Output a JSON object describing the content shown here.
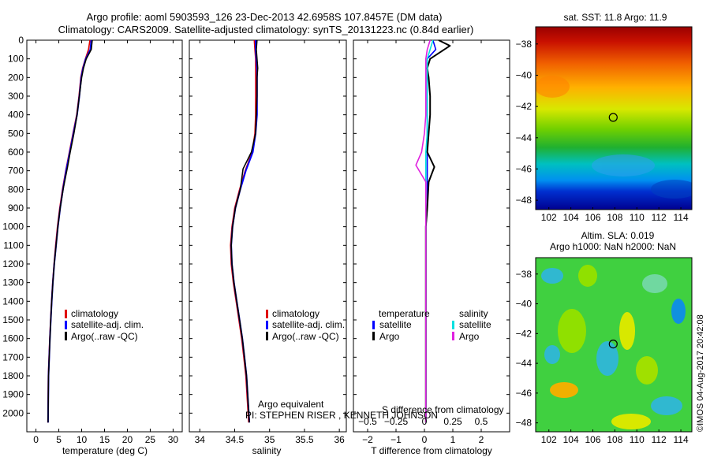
{
  "header": {
    "title_line1": "Argo profile: aoml 5903593_126 23-Dec-2013 42.6958S 107.8457E (DM data)",
    "title_line2": "Climatology: CARS2009. Satellite-adjusted climatology: synTS_20131223.nc (0.84d earlier)"
  },
  "legend_profile": [
    "climatology",
    "satellite-adj. clim.",
    "Argo(..raw -QC)"
  ],
  "legend_diff": {
    "temperature_heading": "temperature",
    "salinity_heading": "salinity",
    "temp_items": [
      "satellite",
      "Argo"
    ],
    "sal_items": [
      "satellite",
      "Argo"
    ]
  },
  "annotations": {
    "argo_equiv": "Argo equivalent",
    "pi": "PI: STEPHEN RISER , KENNETH JOHNSON",
    "s_diff_label": "S difference from climatology",
    "credit": "©IMOS 04-Aug-2017 20:42:08"
  },
  "colors": {
    "climatology": "#e00000",
    "satellite": "#0000ff",
    "argo": "#000000",
    "sal_satellite": "#00e0e0",
    "sal_argo": "#e020e0"
  },
  "chart_data": [
    {
      "type": "line",
      "id": "temperature",
      "xlabel": "temperature (deg C)",
      "ylabel": "",
      "xlim": [
        -2,
        32
      ],
      "ylim": [
        0,
        2100
      ],
      "xticks": [
        0,
        5,
        10,
        15,
        20,
        25,
        30
      ],
      "yticks": [
        0,
        100,
        200,
        300,
        400,
        500,
        600,
        700,
        800,
        900,
        1000,
        1100,
        1200,
        1300,
        1400,
        1500,
        1600,
        1700,
        1800,
        1900,
        2000
      ],
      "series": [
        {
          "name": "climatology",
          "x": [
            11.8,
            11.5,
            10.8,
            10.2,
            9.8,
            9.4,
            8.9,
            8.1,
            7.3,
            6.5,
            5.8,
            5.2,
            4.7,
            4.3,
            3.95,
            3.65,
            3.4,
            3.2,
            3.0,
            2.85,
            2.7,
            2.6
          ],
          "y": [
            0,
            50,
            100,
            150,
            200,
            300,
            400,
            500,
            600,
            700,
            800,
            900,
            1000,
            1100,
            1200,
            1300,
            1400,
            1500,
            1600,
            1700,
            1800,
            2050
          ]
        },
        {
          "name": "satellite-adj. clim.",
          "x": [
            12.1,
            11.9,
            10.9,
            10.3,
            9.9,
            9.5,
            9.0,
            8.2,
            7.4,
            6.6,
            5.9,
            5.3,
            4.8,
            4.4,
            4.0,
            3.7,
            3.45,
            3.25,
            3.05,
            2.9,
            2.75,
            2.65
          ],
          "y": [
            0,
            50,
            100,
            150,
            200,
            300,
            400,
            500,
            600,
            700,
            800,
            900,
            1000,
            1100,
            1200,
            1300,
            1400,
            1500,
            1600,
            1700,
            1800,
            2050
          ]
        },
        {
          "name": "Argo(..raw -QC)",
          "x": [
            12.3,
            12.1,
            11.0,
            10.4,
            10.0,
            9.5,
            9.0,
            8.3,
            7.5,
            6.9,
            6.0,
            5.3,
            4.8,
            4.4,
            4.0,
            3.7,
            3.45,
            3.25,
            3.05,
            2.9,
            2.75,
            2.65
          ],
          "y": [
            0,
            50,
            100,
            150,
            200,
            300,
            400,
            500,
            600,
            680,
            790,
            900,
            1000,
            1100,
            1200,
            1300,
            1400,
            1500,
            1600,
            1700,
            1800,
            2050
          ]
        }
      ]
    },
    {
      "type": "line",
      "id": "salinity",
      "xlabel": "salinity",
      "ylabel": "",
      "xlim": [
        33.85,
        36.1
      ],
      "ylim": [
        0,
        2100
      ],
      "xticks": [
        34,
        34.5,
        35,
        35.5,
        36
      ],
      "series": [
        {
          "name": "climatology",
          "x": [
            34.78,
            34.79,
            34.8,
            34.8,
            34.8,
            34.8,
            34.8,
            34.79,
            34.75,
            34.65,
            34.57,
            34.5,
            34.46,
            34.44,
            34.45,
            34.48,
            34.52,
            34.56,
            34.6,
            34.63,
            34.66,
            34.7
          ],
          "y": [
            0,
            50,
            100,
            150,
            200,
            300,
            400,
            500,
            600,
            700,
            800,
            900,
            1000,
            1100,
            1200,
            1300,
            1400,
            1500,
            1600,
            1700,
            1800,
            2050
          ]
        },
        {
          "name": "satellite-adj. clim.",
          "x": [
            34.8,
            34.8,
            34.81,
            34.82,
            34.82,
            34.82,
            34.82,
            34.8,
            34.76,
            34.66,
            34.58,
            34.51,
            34.47,
            34.45,
            34.46,
            34.49,
            34.53,
            34.57,
            34.61,
            34.64,
            34.67,
            34.71
          ],
          "y": [
            0,
            50,
            100,
            150,
            200,
            300,
            400,
            500,
            600,
            700,
            800,
            900,
            1000,
            1100,
            1200,
            1300,
            1400,
            1500,
            1600,
            1700,
            1800,
            2050
          ]
        },
        {
          "name": "Argo(..raw -QC)",
          "x": [
            34.82,
            34.81,
            34.82,
            34.83,
            34.82,
            34.82,
            34.81,
            34.8,
            34.74,
            34.62,
            34.58,
            34.51,
            34.47,
            34.45,
            34.46,
            34.49,
            34.53,
            34.57,
            34.61,
            34.64,
            34.67,
            34.71
          ],
          "y": [
            0,
            50,
            100,
            150,
            200,
            300,
            400,
            500,
            600,
            690,
            800,
            900,
            1000,
            1100,
            1200,
            1300,
            1400,
            1500,
            1600,
            1700,
            1800,
            2050
          ]
        }
      ]
    },
    {
      "type": "line",
      "id": "difference",
      "xlabel": "T difference from climatology",
      "xlabel_top": "S difference from climatology",
      "xlim": [
        -2.5,
        3
      ],
      "ylim": [
        0,
        2100
      ],
      "xticks": [
        -2,
        -1,
        0,
        1,
        2
      ],
      "xticks_s": [
        -0.5,
        -0.25,
        0,
        0.25,
        0.5
      ],
      "series": [
        {
          "name": "temperature satellite",
          "x": [
            0.3,
            0.4,
            0.1,
            0.1,
            0.1,
            0.1,
            0.1,
            0.1,
            0.1,
            0.1,
            0.1,
            0.1,
            0.05,
            0.05,
            0.05,
            0.05,
            0.05,
            0.05,
            0.05,
            0.05,
            0.05,
            0.05
          ],
          "y": [
            0,
            50,
            100,
            150,
            200,
            300,
            400,
            500,
            600,
            700,
            800,
            900,
            1000,
            1100,
            1200,
            1300,
            1400,
            1500,
            1600,
            1700,
            1800,
            2050
          ]
        },
        {
          "name": "temperature Argo",
          "x": [
            0.5,
            0.9,
            0.2,
            0.1,
            0.15,
            0.2,
            0.2,
            0.15,
            0.1,
            0.35,
            0.15,
            0.1,
            0.05,
            0.05,
            0.05,
            0.05,
            0.05,
            0.05,
            0.05,
            0.05,
            0.05,
            0.05
          ],
          "y": [
            0,
            30,
            100,
            150,
            200,
            300,
            400,
            500,
            600,
            680,
            760,
            900,
            1000,
            1100,
            1200,
            1300,
            1400,
            1500,
            1600,
            1700,
            1800,
            2050
          ]
        },
        {
          "name": "salinity satellite",
          "x": [
            0.3,
            0.2,
            0.1,
            0.1,
            0.1,
            0.1,
            0.1,
            0.1,
            0.05,
            0.05,
            0.05,
            0.05,
            0.05,
            0.05,
            0.05,
            0.05,
            0.05,
            0.05,
            0.05,
            0.05,
            0.05,
            0.05
          ],
          "y": [
            0,
            50,
            100,
            150,
            200,
            300,
            400,
            500,
            600,
            700,
            800,
            900,
            1000,
            1100,
            1200,
            1300,
            1400,
            1500,
            1600,
            1700,
            1800,
            2050
          ]
        },
        {
          "name": "salinity Argo",
          "x": [
            0.2,
            0.1,
            0.05,
            0.05,
            0.05,
            0.05,
            0.05,
            0.0,
            -0.1,
            -0.3,
            0.05,
            0.05,
            0.05,
            0.05,
            0.05,
            0.05,
            0.05,
            0.05,
            0.05,
            0.05,
            0.05,
            0.05
          ],
          "y": [
            0,
            50,
            100,
            150,
            200,
            300,
            400,
            500,
            600,
            670,
            760,
            900,
            1000,
            1100,
            1200,
            1300,
            1400,
            1500,
            1600,
            1700,
            1800,
            2050
          ]
        }
      ]
    },
    {
      "type": "heatmap",
      "id": "sst_map",
      "title": "sat. SST: 11.8 Argo: 11.9",
      "xlim": [
        100.8,
        115
      ],
      "ylim": [
        -48.6,
        -36.9
      ],
      "xticks": [
        102,
        104,
        106,
        108,
        110,
        112,
        114
      ],
      "yticks": [
        -38,
        -40,
        -42,
        -44,
        -46,
        -48
      ],
      "marker": {
        "lon": 107.85,
        "lat": -42.7
      }
    },
    {
      "type": "heatmap",
      "id": "sla_map",
      "title_line1": "Altim. SLA: 0.019",
      "title_line2": "Argo h1000: NaN h2000: NaN",
      "xlim": [
        100.8,
        115
      ],
      "ylim": [
        -48.6,
        -36.9
      ],
      "xticks": [
        102,
        104,
        106,
        108,
        110,
        112,
        114
      ],
      "yticks": [
        -38,
        -40,
        -42,
        -44,
        -46,
        -48
      ],
      "marker": {
        "lon": 107.85,
        "lat": -42.7
      }
    }
  ]
}
